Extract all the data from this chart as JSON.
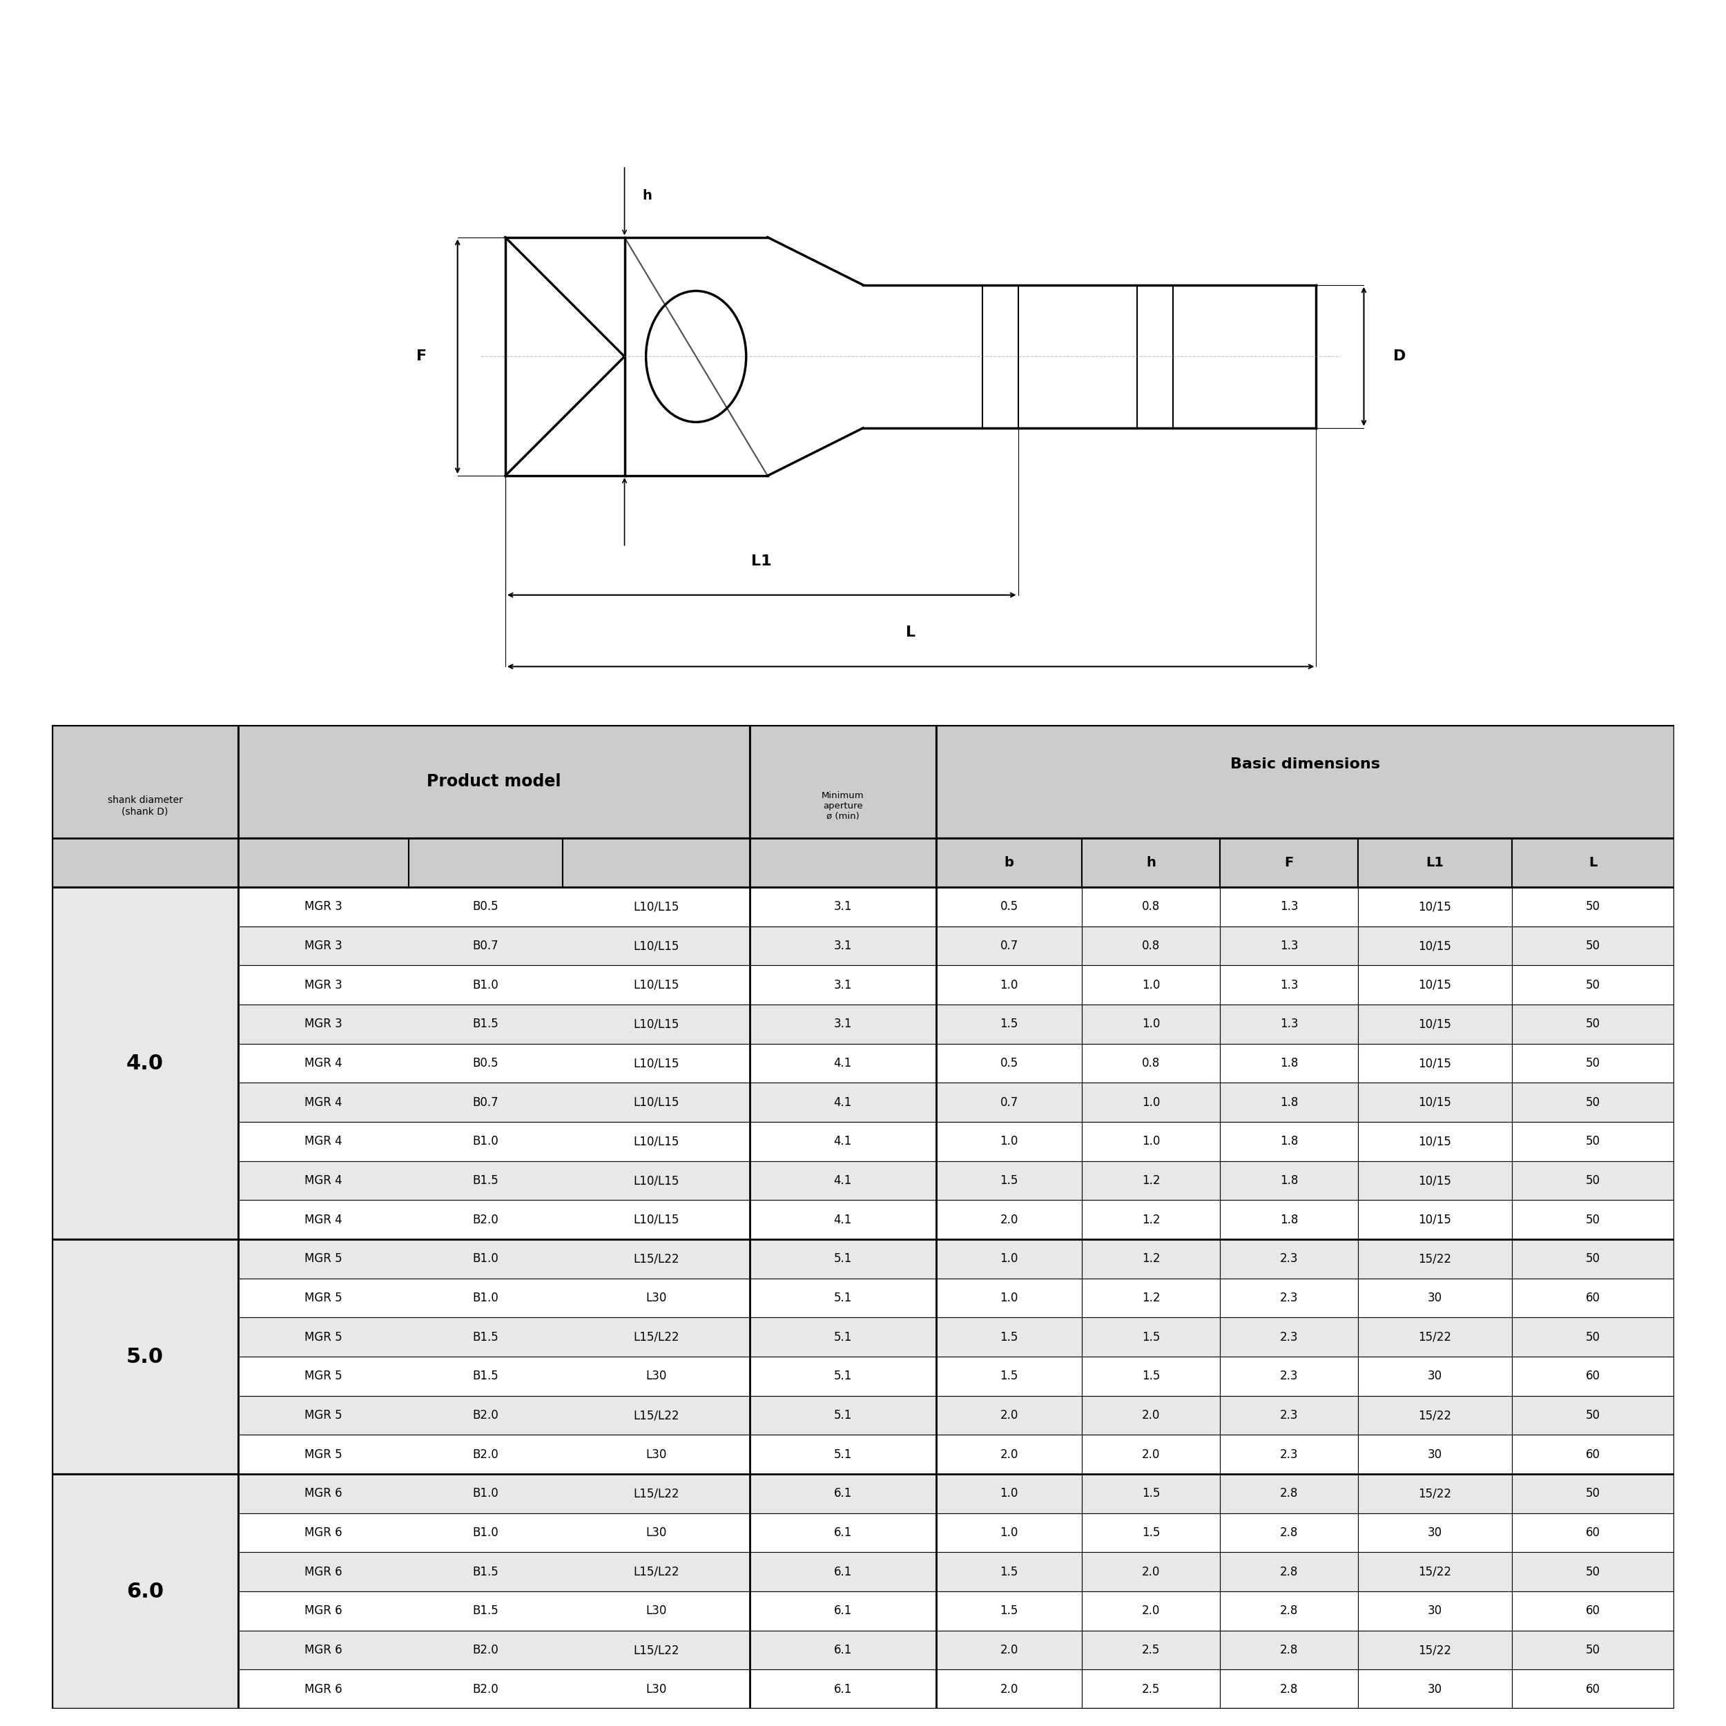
{
  "bg_color": "#ffffff",
  "table_header_bg": "#cccccc",
  "table_row_bg_alt": "#e8e8e8",
  "table_row_bg_white": "#ffffff",
  "rows": [
    [
      "4.0",
      "MGR 3",
      "B0.5",
      "L10/L15",
      "3.1",
      "0.5",
      "0.8",
      "1.3",
      "10/15",
      "50"
    ],
    [
      "",
      "MGR 3",
      "B0.7",
      "L10/L15",
      "3.1",
      "0.7",
      "0.8",
      "1.3",
      "10/15",
      "50"
    ],
    [
      "",
      "MGR 3",
      "B1.0",
      "L10/L15",
      "3.1",
      "1.0",
      "1.0",
      "1.3",
      "10/15",
      "50"
    ],
    [
      "",
      "MGR 3",
      "B1.5",
      "L10/L15",
      "3.1",
      "1.5",
      "1.0",
      "1.3",
      "10/15",
      "50"
    ],
    [
      "",
      "MGR 4",
      "B0.5",
      "L10/L15",
      "4.1",
      "0.5",
      "0.8",
      "1.8",
      "10/15",
      "50"
    ],
    [
      "",
      "MGR 4",
      "B0.7",
      "L10/L15",
      "4.1",
      "0.7",
      "1.0",
      "1.8",
      "10/15",
      "50"
    ],
    [
      "",
      "MGR 4",
      "B1.0",
      "L10/L15",
      "4.1",
      "1.0",
      "1.0",
      "1.8",
      "10/15",
      "50"
    ],
    [
      "",
      "MGR 4",
      "B1.5",
      "L10/L15",
      "4.1",
      "1.5",
      "1.2",
      "1.8",
      "10/15",
      "50"
    ],
    [
      "",
      "MGR 4",
      "B2.0",
      "L10/L15",
      "4.1",
      "2.0",
      "1.2",
      "1.8",
      "10/15",
      "50"
    ],
    [
      "5.0",
      "MGR 5",
      "B1.0",
      "L15/L22",
      "5.1",
      "1.0",
      "1.2",
      "2.3",
      "15/22",
      "50"
    ],
    [
      "",
      "MGR 5",
      "B1.0",
      "L30",
      "5.1",
      "1.0",
      "1.2",
      "2.3",
      "30",
      "60"
    ],
    [
      "",
      "MGR 5",
      "B1.5",
      "L15/L22",
      "5.1",
      "1.5",
      "1.5",
      "2.3",
      "15/22",
      "50"
    ],
    [
      "",
      "MGR 5",
      "B1.5",
      "L30",
      "5.1",
      "1.5",
      "1.5",
      "2.3",
      "30",
      "60"
    ],
    [
      "",
      "MGR 5",
      "B2.0",
      "L15/L22",
      "5.1",
      "2.0",
      "2.0",
      "2.3",
      "15/22",
      "50"
    ],
    [
      "",
      "MGR 5",
      "B2.0",
      "L30",
      "5.1",
      "2.0",
      "2.0",
      "2.3",
      "30",
      "60"
    ],
    [
      "6.0",
      "MGR 6",
      "B1.0",
      "L15/L22",
      "6.1",
      "1.0",
      "1.5",
      "2.8",
      "15/22",
      "50"
    ],
    [
      "",
      "MGR 6",
      "B1.0",
      "L30",
      "6.1",
      "1.0",
      "1.5",
      "2.8",
      "30",
      "60"
    ],
    [
      "",
      "MGR 6",
      "B1.5",
      "L15/L22",
      "6.1",
      "1.5",
      "2.0",
      "2.8",
      "15/22",
      "50"
    ],
    [
      "",
      "MGR 6",
      "B1.5",
      "L30",
      "6.1",
      "1.5",
      "2.0",
      "2.8",
      "30",
      "60"
    ],
    [
      "",
      "MGR 6",
      "B2.0",
      "L15/L22",
      "6.1",
      "2.0",
      "2.5",
      "2.8",
      "15/22",
      "50"
    ],
    [
      "",
      "MGR 6",
      "B2.0",
      "L30",
      "6.1",
      "2.0",
      "2.5",
      "2.8",
      "30",
      "60"
    ]
  ],
  "group_spans": [
    {
      "label": "4.0",
      "start": 0,
      "end": 8
    },
    {
      "label": "5.0",
      "start": 9,
      "end": 14
    },
    {
      "label": "6.0",
      "start": 15,
      "end": 20
    }
  ]
}
